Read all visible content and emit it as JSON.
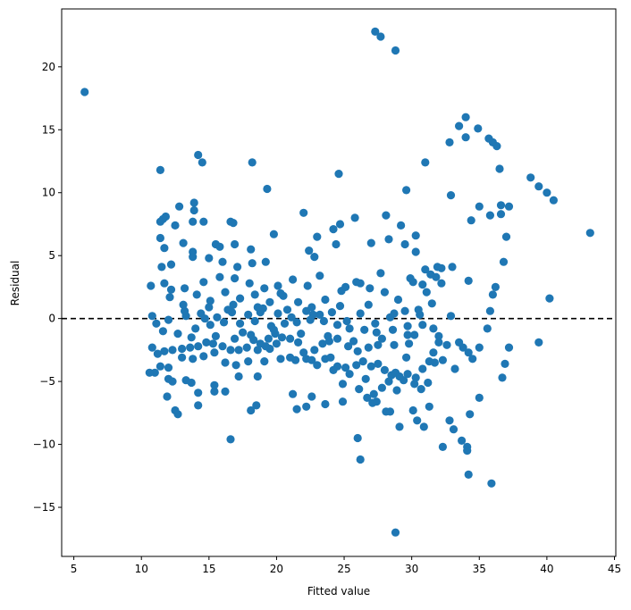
{
  "chart_data": {
    "type": "scatter",
    "title": "",
    "xlabel": "Fitted value",
    "ylabel": "Residual",
    "xlim": [
      4.1,
      45.1
    ],
    "ylim": [
      -18.9,
      24.6
    ],
    "xticks": [
      5,
      10,
      15,
      20,
      25,
      30,
      35,
      40,
      45
    ],
    "yticks": [
      -15,
      -10,
      -5,
      0,
      5,
      10,
      15,
      20
    ],
    "grid": false,
    "reference_line": {
      "y": 0,
      "style": "dashed",
      "color": "#000000"
    },
    "marker_color": "#1f77b4",
    "points": [
      [
        5.8,
        18.0
      ],
      [
        27.3,
        22.8
      ],
      [
        27.7,
        22.4
      ],
      [
        28.8,
        21.3
      ],
      [
        14.2,
        13.0
      ],
      [
        14.5,
        12.4
      ],
      [
        18.2,
        12.4
      ],
      [
        11.4,
        11.8
      ],
      [
        24.6,
        11.5
      ],
      [
        31.0,
        12.4
      ],
      [
        32.8,
        14.0
      ],
      [
        33.5,
        15.3
      ],
      [
        34.0,
        16.0
      ],
      [
        34.9,
        15.1
      ],
      [
        35.7,
        14.3
      ],
      [
        36.0,
        14.0
      ],
      [
        36.3,
        13.7
      ],
      [
        34.0,
        14.4
      ],
      [
        36.5,
        11.9
      ],
      [
        38.8,
        11.2
      ],
      [
        39.4,
        10.5
      ],
      [
        40.0,
        10.0
      ],
      [
        40.5,
        9.4
      ],
      [
        43.2,
        6.8
      ],
      [
        36.6,
        9.0
      ],
      [
        37.2,
        8.9
      ],
      [
        36.6,
        8.3
      ],
      [
        35.8,
        8.2
      ],
      [
        35.0,
        8.9
      ],
      [
        34.4,
        7.8
      ],
      [
        32.9,
        9.8
      ],
      [
        29.6,
        10.2
      ],
      [
        19.3,
        10.3
      ],
      [
        12.8,
        8.9
      ],
      [
        13.9,
        9.2
      ],
      [
        13.9,
        8.6
      ],
      [
        11.6,
        7.9
      ],
      [
        11.8,
        8.1
      ],
      [
        11.4,
        7.7
      ],
      [
        13.8,
        7.7
      ],
      [
        14.6,
        7.7
      ],
      [
        16.6,
        7.7
      ],
      [
        16.8,
        7.6
      ],
      [
        12.5,
        7.4
      ],
      [
        22.0,
        8.4
      ],
      [
        24.7,
        7.5
      ],
      [
        25.8,
        8.0
      ],
      [
        28.1,
        8.2
      ],
      [
        29.2,
        7.4
      ],
      [
        24.2,
        7.1
      ],
      [
        23.0,
        6.5
      ],
      [
        19.8,
        6.7
      ],
      [
        11.4,
        6.4
      ],
      [
        13.1,
        6.0
      ],
      [
        16.9,
        5.9
      ],
      [
        11.7,
        5.6
      ],
      [
        15.5,
        5.9
      ],
      [
        13.8,
        5.3
      ],
      [
        15.8,
        5.7
      ],
      [
        18.1,
        5.5
      ],
      [
        22.4,
        5.4
      ],
      [
        22.8,
        4.9
      ],
      [
        24.4,
        5.9
      ],
      [
        27.0,
        6.0
      ],
      [
        28.3,
        6.3
      ],
      [
        29.5,
        5.9
      ],
      [
        30.3,
        6.6
      ],
      [
        30.3,
        5.3
      ],
      [
        31.0,
        3.9
      ],
      [
        31.4,
        3.5
      ],
      [
        31.9,
        4.1
      ],
      [
        33.0,
        4.1
      ],
      [
        34.2,
        3.0
      ],
      [
        36.2,
        2.5
      ],
      [
        36.0,
        1.9
      ],
      [
        36.8,
        4.5
      ],
      [
        37.0,
        6.5
      ],
      [
        35.8,
        0.6
      ],
      [
        35.6,
        -0.8
      ],
      [
        32.9,
        0.2
      ],
      [
        37.2,
        -2.3
      ],
      [
        34.2,
        -2.7
      ],
      [
        34.5,
        -3.2
      ],
      [
        35.0,
        -2.3
      ],
      [
        34.3,
        -7.6
      ],
      [
        35.0,
        -6.3
      ],
      [
        39.4,
        -1.9
      ],
      [
        40.2,
        1.6
      ],
      [
        36.9,
        -3.6
      ],
      [
        36.7,
        -4.7
      ],
      [
        33.2,
        -4.0
      ],
      [
        32.3,
        -3.3
      ],
      [
        31.7,
        -3.5
      ],
      [
        31.3,
        -3.4
      ],
      [
        32.8,
        -8.1
      ],
      [
        33.1,
        -8.8
      ],
      [
        33.7,
        -9.7
      ],
      [
        34.1,
        -10.2
      ],
      [
        34.1,
        -10.5
      ],
      [
        34.2,
        -12.4
      ],
      [
        35.9,
        -13.1
      ],
      [
        32.3,
        -10.2
      ],
      [
        30.1,
        -7.3
      ],
      [
        30.4,
        -8.1
      ],
      [
        30.9,
        -8.6
      ],
      [
        31.3,
        -7.0
      ],
      [
        28.8,
        -17.0
      ],
      [
        29.1,
        -8.6
      ],
      [
        28.1,
        -7.4
      ],
      [
        28.4,
        -7.4
      ],
      [
        27.4,
        -6.6
      ],
      [
        26.7,
        -6.3
      ],
      [
        27.1,
        -6.7
      ],
      [
        26.2,
        -11.2
      ],
      [
        26.0,
        -9.5
      ],
      [
        24.9,
        -6.6
      ],
      [
        23.6,
        -6.8
      ],
      [
        22.6,
        -6.2
      ],
      [
        21.5,
        -7.2
      ],
      [
        22.2,
        -7.0
      ],
      [
        21.2,
        -6.0
      ],
      [
        16.6,
        -9.6
      ],
      [
        18.5,
        -6.9
      ],
      [
        18.1,
        -7.3
      ],
      [
        12.7,
        -7.6
      ],
      [
        12.5,
        -7.3
      ],
      [
        11.9,
        -6.2
      ],
      [
        14.2,
        -6.9
      ],
      [
        14.2,
        -5.9
      ],
      [
        15.4,
        -5.8
      ],
      [
        15.4,
        -5.3
      ],
      [
        13.3,
        -4.9
      ],
      [
        12.0,
        -4.8
      ],
      [
        12.3,
        -5.0
      ],
      [
        11.0,
        -4.3
      ],
      [
        10.6,
        -4.3
      ],
      [
        13.7,
        -5.1
      ],
      [
        16.2,
        -5.8
      ],
      [
        17.2,
        -4.6
      ],
      [
        18.6,
        -4.6
      ],
      [
        19.1,
        -3.4
      ],
      [
        19.5,
        -2.4
      ],
      [
        20.0,
        -2.0
      ],
      [
        20.3,
        -3.2
      ],
      [
        21.0,
        -3.1
      ],
      [
        21.4,
        -3.3
      ],
      [
        22.2,
        -3.2
      ],
      [
        22.6,
        -3.3
      ],
      [
        23.0,
        -3.7
      ],
      [
        23.6,
        -3.2
      ],
      [
        24.0,
        -3.1
      ],
      [
        24.5,
        -3.8
      ],
      [
        25.1,
        -3.9
      ],
      [
        25.9,
        -3.7
      ],
      [
        26.4,
        -3.4
      ],
      [
        27.0,
        -3.8
      ],
      [
        27.5,
        -3.6
      ],
      [
        28.0,
        -4.1
      ],
      [
        28.5,
        -4.5
      ],
      [
        28.8,
        -4.3
      ],
      [
        29.4,
        -4.9
      ],
      [
        29.7,
        -4.4
      ],
      [
        30.2,
        -5.2
      ],
      [
        30.7,
        -5.6
      ],
      [
        31.2,
        -5.1
      ],
      [
        30.8,
        -4.0
      ],
      [
        31.6,
        -2.7
      ],
      [
        32.0,
        -1.9
      ],
      [
        32.6,
        -2.1
      ],
      [
        33.5,
        -1.9
      ],
      [
        33.8,
        -2.3
      ],
      [
        32.0,
        -1.4
      ],
      [
        30.2,
        -1.3
      ],
      [
        29.7,
        -1.3
      ],
      [
        28.7,
        -2.1
      ],
      [
        27.5,
        -2.1
      ],
      [
        26.8,
        -2.3
      ],
      [
        26.0,
        -2.6
      ],
      [
        25.3,
        -2.2
      ],
      [
        24.5,
        -1.6
      ],
      [
        23.9,
        -1.8
      ],
      [
        23.4,
        -2.0
      ],
      [
        22.8,
        -2.5
      ],
      [
        22.0,
        -2.7
      ],
      [
        21.6,
        -1.9
      ],
      [
        21.0,
        -1.6
      ],
      [
        20.4,
        -1.5
      ],
      [
        19.9,
        -1.2
      ],
      [
        19.4,
        -1.6
      ],
      [
        18.8,
        -2.0
      ],
      [
        18.3,
        -1.7
      ],
      [
        17.8,
        -2.3
      ],
      [
        17.2,
        -2.5
      ],
      [
        16.6,
        -2.5
      ],
      [
        16.0,
        -2.2
      ],
      [
        15.3,
        -2.0
      ],
      [
        14.8,
        -1.9
      ],
      [
        14.2,
        -2.2
      ],
      [
        13.6,
        -2.3
      ],
      [
        13.0,
        -2.4
      ],
      [
        12.3,
        -2.5
      ],
      [
        11.7,
        -2.6
      ],
      [
        11.2,
        -2.8
      ],
      [
        10.8,
        -2.3
      ],
      [
        11.4,
        -3.8
      ],
      [
        12.0,
        -3.9
      ],
      [
        13.0,
        -3.1
      ],
      [
        13.8,
        -3.2
      ],
      [
        14.6,
        -3.0
      ],
      [
        15.4,
        -2.7
      ],
      [
        16.2,
        -3.5
      ],
      [
        17.0,
        -3.7
      ],
      [
        17.9,
        -3.4
      ],
      [
        18.6,
        -2.5
      ],
      [
        19.2,
        -2.2
      ],
      [
        14.0,
        -0.8
      ],
      [
        15.1,
        -0.5
      ],
      [
        16.1,
        -0.3
      ],
      [
        17.3,
        -0.4
      ],
      [
        18.4,
        -0.2
      ],
      [
        19.6,
        -0.6
      ],
      [
        20.6,
        -0.4
      ],
      [
        21.5,
        -0.3
      ],
      [
        22.5,
        -0.1
      ],
      [
        23.5,
        -0.2
      ],
      [
        24.5,
        -0.5
      ],
      [
        25.4,
        -0.8
      ],
      [
        26.5,
        -0.9
      ],
      [
        27.4,
        -1.1
      ],
      [
        28.6,
        -0.9
      ],
      [
        29.7,
        -0.6
      ],
      [
        30.8,
        -0.5
      ],
      [
        31.6,
        -0.8
      ],
      [
        13.3,
        0.2
      ],
      [
        14.4,
        0.4
      ],
      [
        15.6,
        0.1
      ],
      [
        16.7,
        0.5
      ],
      [
        17.9,
        0.3
      ],
      [
        19.0,
        0.8
      ],
      [
        20.1,
        0.4
      ],
      [
        21.1,
        0.1
      ],
      [
        22.2,
        0.6
      ],
      [
        23.2,
        0.3
      ],
      [
        24.1,
        0.5
      ],
      [
        25.2,
        -0.2
      ],
      [
        26.2,
        0.4
      ],
      [
        27.3,
        -0.4
      ],
      [
        28.4,
        0.1
      ],
      [
        29.5,
        0.6
      ],
      [
        30.5,
        0.7
      ],
      [
        31.5,
        1.2
      ],
      [
        12.1,
        1.7
      ],
      [
        13.1,
        1.1
      ],
      [
        14.1,
        1.9
      ],
      [
        15.1,
        1.4
      ],
      [
        16.2,
        2.1
      ],
      [
        17.3,
        1.6
      ],
      [
        18.4,
        1.9
      ],
      [
        19.5,
        1.3
      ],
      [
        20.5,
        1.8
      ],
      [
        21.6,
        1.3
      ],
      [
        22.6,
        0.9
      ],
      [
        23.6,
        1.5
      ],
      [
        24.8,
        2.2
      ],
      [
        25.9,
        2.9
      ],
      [
        26.9,
        2.4
      ],
      [
        28.0,
        2.1
      ],
      [
        29.0,
        1.5
      ],
      [
        30.1,
        2.9
      ],
      [
        31.1,
        2.1
      ],
      [
        32.2,
        2.8
      ],
      [
        11.7,
        2.8
      ],
      [
        12.2,
        2.3
      ],
      [
        13.2,
        2.4
      ],
      [
        14.6,
        2.9
      ],
      [
        15.8,
        3.3
      ],
      [
        16.9,
        3.2
      ],
      [
        18.0,
        2.8
      ],
      [
        19.1,
        2.4
      ],
      [
        20.1,
        2.6
      ],
      [
        21.2,
        3.1
      ],
      [
        22.3,
        2.6
      ],
      [
        23.2,
        3.4
      ],
      [
        25.1,
        2.5
      ],
      [
        26.2,
        2.8
      ],
      [
        27.7,
        3.6
      ],
      [
        29.9,
        3.2
      ],
      [
        30.8,
        2.7
      ],
      [
        31.8,
        3.3
      ],
      [
        32.2,
        4.0
      ],
      [
        11.5,
        4.1
      ],
      [
        12.2,
        4.3
      ],
      [
        13.8,
        4.9
      ],
      [
        15.0,
        4.8
      ],
      [
        16.0,
        4.5
      ],
      [
        17.1,
        4.1
      ],
      [
        18.2,
        4.4
      ],
      [
        19.2,
        4.5
      ],
      [
        20.3,
        2.0
      ],
      [
        15.0,
        0.9
      ],
      [
        16.8,
        1.1
      ],
      [
        18.8,
        0.5
      ],
      [
        12.7,
        -1.2
      ],
      [
        13.7,
        -1.5
      ],
      [
        15.5,
        -1.4
      ],
      [
        17.5,
        -1.1
      ],
      [
        19.8,
        -0.9
      ],
      [
        21.8,
        -1.2
      ],
      [
        23.8,
        -1.4
      ],
      [
        25.7,
        -1.8
      ],
      [
        27.8,
        -1.6
      ],
      [
        29.8,
        -2.0
      ],
      [
        11.6,
        -1.0
      ],
      [
        11.1,
        -0.4
      ],
      [
        10.8,
        0.2
      ],
      [
        10.7,
        2.6
      ],
      [
        12.0,
        -0.1
      ],
      [
        24.2,
        -4.1
      ],
      [
        25.4,
        -4.4
      ],
      [
        26.6,
        -4.8
      ],
      [
        27.8,
        -5.5
      ],
      [
        28.9,
        -5.7
      ],
      [
        24.9,
        -5.2
      ],
      [
        26.1,
        -5.6
      ],
      [
        27.2,
        -6.0
      ],
      [
        28.3,
        -5.0
      ],
      [
        29.1,
        -4.6
      ],
      [
        29.6,
        -3.1
      ],
      [
        30.3,
        -4.7
      ],
      [
        16.9,
        -1.6
      ],
      [
        18.1,
        -1.3
      ],
      [
        13.2,
        0.6
      ],
      [
        14.7,
        0.0
      ],
      [
        16.4,
        0.7
      ],
      [
        18.6,
        0.9
      ],
      [
        20.8,
        0.7
      ],
      [
        22.7,
        0.3
      ],
      [
        24.7,
        1.0
      ],
      [
        26.8,
        1.1
      ],
      [
        28.7,
        0.4
      ],
      [
        30.6,
        0.3
      ]
    ]
  }
}
